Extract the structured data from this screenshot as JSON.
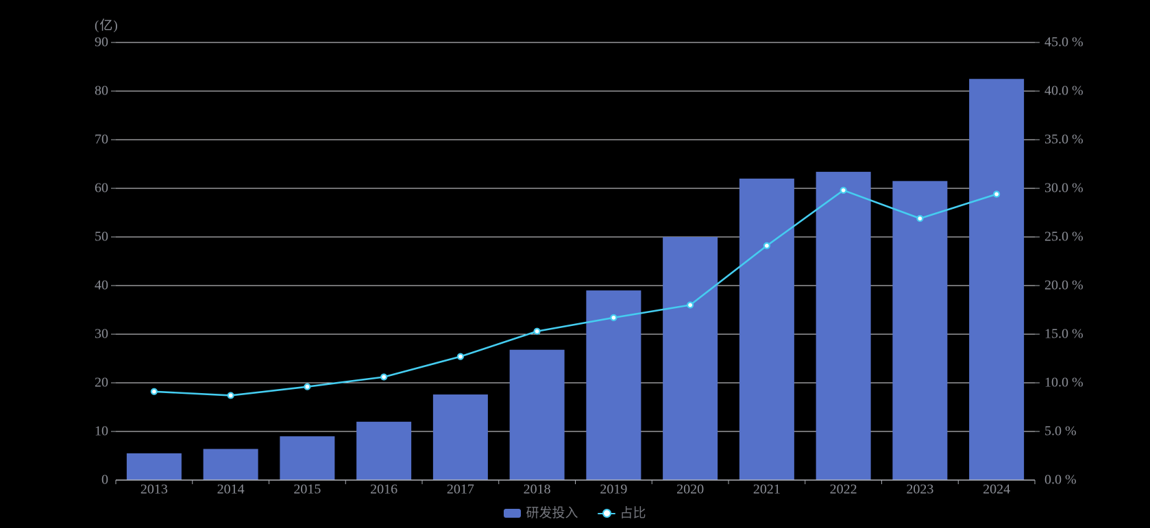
{
  "chart_data": {
    "type": "bar+line combo",
    "title": "",
    "left_axis_name": "(亿)",
    "categories": [
      "2013",
      "2014",
      "2015",
      "2016",
      "2017",
      "2018",
      "2019",
      "2020",
      "2021",
      "2022",
      "2023",
      "2024"
    ],
    "series": [
      {
        "name": "研发投入",
        "type": "bar",
        "axis": "left",
        "unit": "亿",
        "values": [
          5.5,
          6.4,
          9.0,
          12.0,
          17.6,
          26.8,
          39.0,
          50.0,
          62.0,
          63.4,
          61.5,
          82.5
        ]
      },
      {
        "name": "占比",
        "type": "line",
        "axis": "right",
        "unit": "%",
        "values": [
          9.1,
          8.7,
          9.6,
          10.6,
          12.7,
          15.3,
          16.7,
          18.0,
          24.1,
          29.8,
          26.9,
          29.4
        ]
      }
    ],
    "left_axis": {
      "min": 0,
      "max": 90,
      "interval": 10,
      "tick_labels": [
        "0",
        "10",
        "20",
        "30",
        "40",
        "50",
        "60",
        "70",
        "80",
        "90"
      ]
    },
    "right_axis": {
      "min": 0,
      "max": 45,
      "interval": 5,
      "tick_labels": [
        "0.0 %",
        "5.0 %",
        "10.0 %",
        "15.0 %",
        "20.0 %",
        "25.0 %",
        "30.0 %",
        "35.0 %",
        "40.0 %",
        "45.0 %"
      ]
    },
    "grid": true,
    "legend_position": "bottom-center"
  },
  "axis_title": "(亿)",
  "legend": {
    "bar_label": "研发投入",
    "line_label": "占比"
  },
  "colors": {
    "background": "#000000",
    "bar": "#5571c9",
    "line": "#45cdf0",
    "marker_fill": "#ffffff",
    "grid": "#e4e4e8",
    "axis_line": "#b2b4ba",
    "tick": "#a9abb1",
    "label": "#8a8d95",
    "legend_text": "#74767d"
  }
}
